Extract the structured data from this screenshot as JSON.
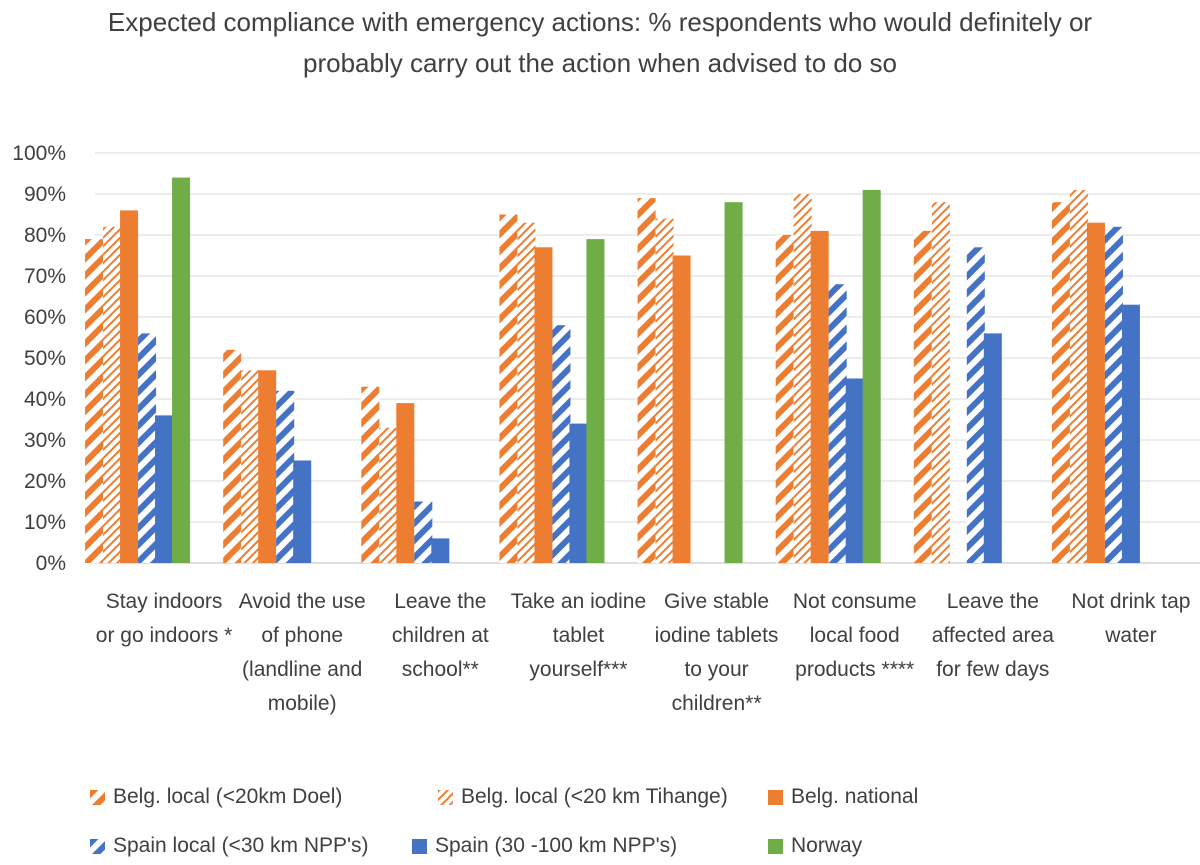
{
  "chart_data": {
    "type": "bar",
    "title": "Expected compliance with emergency actions: % respondents who would definitely or probably carry out the action when advised to do so",
    "ylim": [
      0,
      100
    ],
    "ytick_labels": [
      "0%",
      "10%",
      "20%",
      "30%",
      "40%",
      "50%",
      "60%",
      "70%",
      "80%",
      "90%",
      "100%"
    ],
    "grid": true,
    "legend_position": "bottom",
    "categories": [
      "Stay indoors or go indoors *",
      "Avoid the use of phone (landline and mobile)",
      "Leave the children at school**",
      "Take an iodine tablet yourself***",
      "Give stable iodine tablets to your children**",
      "Not consume local food products ****",
      "Leave the affected area for few days",
      "Not drink tap water"
    ],
    "series": [
      {
        "name": "Belg. local (<20km Doel)",
        "color": "#ED7D31",
        "pattern": "wide-diagonal",
        "values": [
          79,
          52,
          43,
          85,
          89,
          80,
          81,
          88
        ]
      },
      {
        "name": "Belg. local (<20 km Tihange)",
        "color": "#ED7D31",
        "pattern": "light-diagonal",
        "values": [
          82,
          47,
          33,
          83,
          84,
          90,
          88,
          91
        ]
      },
      {
        "name": "Belg. national",
        "color": "#ED7D31",
        "pattern": "solid",
        "values": [
          86,
          47,
          39,
          77,
          75,
          81,
          null,
          83
        ]
      },
      {
        "name": "Spain local (<30 km NPP's)",
        "color": "#4472C4",
        "pattern": "wide-diagonal",
        "values": [
          56,
          42,
          15,
          58,
          null,
          68,
          77,
          82
        ]
      },
      {
        "name": "Spain  (30 -100 km  NPP's)",
        "color": "#4472C4",
        "pattern": "solid",
        "values": [
          36,
          25,
          6,
          34,
          null,
          45,
          56,
          63
        ]
      },
      {
        "name": "Norway",
        "color": "#70AD47",
        "pattern": "solid",
        "values": [
          94,
          null,
          null,
          79,
          88,
          91,
          null,
          null
        ]
      }
    ]
  }
}
